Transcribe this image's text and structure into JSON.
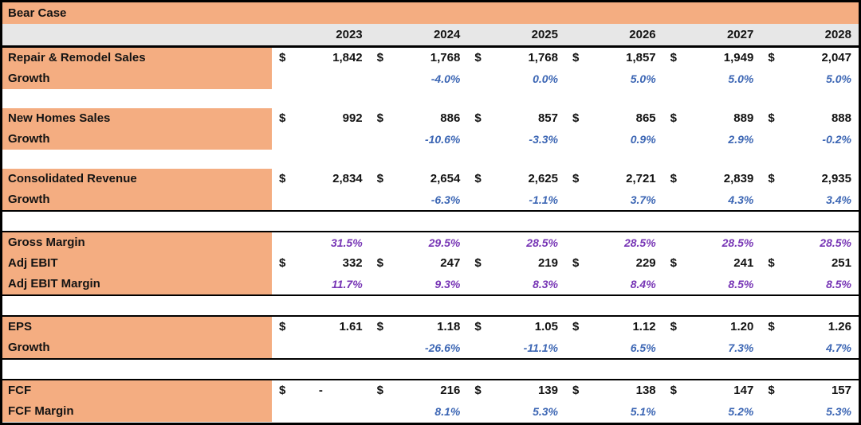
{
  "title": "Bear Case",
  "colors": {
    "orange_fill": "#F4AD81",
    "gray_header": "#E7E7E7",
    "growth_blue": "#3C66B4",
    "margin_purple": "#7735B5",
    "text_black": "#131313",
    "border_black": "#000000"
  },
  "table": {
    "years": [
      "2023",
      "2024",
      "2025",
      "2026",
      "2027",
      "2028"
    ],
    "currency_symbol": "$",
    "sections": [
      {
        "name": "repair-remodel",
        "border": "none",
        "rows": [
          {
            "label": "Repair & Remodel Sales",
            "type": "money",
            "values": [
              "1,842",
              "1,768",
              "1,768",
              "1,857",
              "1,949",
              "2,047"
            ]
          },
          {
            "label": "Growth",
            "type": "pct_blue",
            "values": [
              "",
              "-4.0%",
              "0.0%",
              "5.0%",
              "5.0%",
              "5.0%"
            ]
          }
        ]
      },
      {
        "name": "new-homes",
        "border": "none",
        "rows": [
          {
            "label": "New Homes Sales",
            "type": "money",
            "values": [
              "992",
              "886",
              "857",
              "865",
              "889",
              "888"
            ]
          },
          {
            "label": "Growth",
            "type": "pct_blue",
            "values": [
              "",
              "-10.6%",
              "-3.3%",
              "0.9%",
              "2.9%",
              "-0.2%"
            ]
          }
        ]
      },
      {
        "name": "consolidated-revenue",
        "border": "bottom",
        "rows": [
          {
            "label": "Consolidated Revenue",
            "type": "money",
            "values": [
              "2,834",
              "2,654",
              "2,625",
              "2,721",
              "2,839",
              "2,935"
            ]
          },
          {
            "label": "Growth",
            "type": "pct_blue",
            "values": [
              "",
              "-6.3%",
              "-1.1%",
              "3.7%",
              "4.3%",
              "3.4%"
            ]
          }
        ]
      },
      {
        "name": "margins-ebit",
        "border": "both",
        "rows": [
          {
            "label": "Gross Margin",
            "type": "pct_purple",
            "values": [
              "31.5%",
              "29.5%",
              "28.5%",
              "28.5%",
              "28.5%",
              "28.5%"
            ]
          },
          {
            "label": "Adj EBIT",
            "type": "money",
            "values": [
              "332",
              "247",
              "219",
              "229",
              "241",
              "251"
            ]
          },
          {
            "label": "Adj EBIT Margin",
            "type": "pct_purple",
            "values": [
              "11.7%",
              "9.3%",
              "8.3%",
              "8.4%",
              "8.5%",
              "8.5%"
            ]
          }
        ]
      },
      {
        "name": "eps",
        "border": "both",
        "rows": [
          {
            "label": "EPS",
            "type": "money",
            "values": [
              "1.61",
              "1.18",
              "1.05",
              "1.12",
              "1.20",
              "1.26"
            ]
          },
          {
            "label": "Growth",
            "type": "pct_blue",
            "values": [
              "",
              "-26.6%",
              "-11.1%",
              "6.5%",
              "7.3%",
              "4.7%"
            ]
          }
        ]
      },
      {
        "name": "fcf",
        "border": "top",
        "rows": [
          {
            "label": "FCF",
            "type": "money",
            "values": [
              "-",
              "216",
              "139",
              "138",
              "147",
              "157"
            ]
          },
          {
            "label": "FCF Margin",
            "type": "pct_blue",
            "values": [
              "",
              "8.1%",
              "5.3%",
              "5.1%",
              "5.2%",
              "5.3%"
            ]
          }
        ]
      }
    ]
  }
}
